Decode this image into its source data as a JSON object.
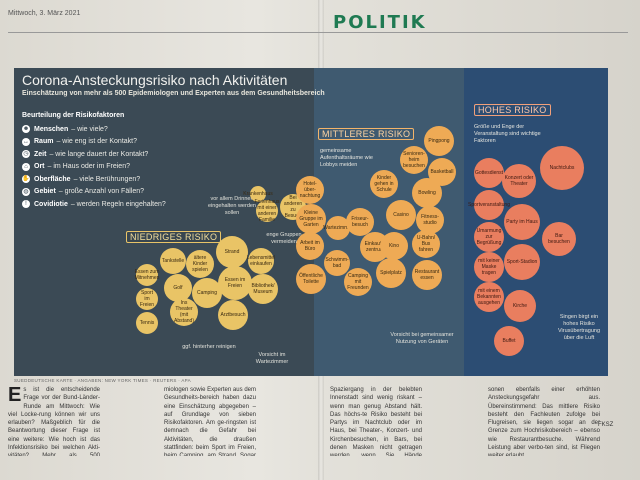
{
  "page": {
    "dateline": "Mittwoch, 3. März 2021",
    "section": "POLITIK"
  },
  "graphic": {
    "title": "Corona-Ansteckungsrisiko nach Aktivitäten",
    "subtitle": "Einschätzung von mehr als 500 Epidemiologen und Experten aus dem Gesundheitsbereich",
    "legend_title": "Beurteilung der Risikofaktoren",
    "legend": [
      {
        "key": "Menschen",
        "text": "– wie viele?",
        "icon": "people-icon",
        "glyph": "☻"
      },
      {
        "key": "Raum",
        "text": "– wie eng ist der Kontakt?",
        "icon": "space-icon",
        "glyph": "↔"
      },
      {
        "key": "Zeit",
        "text": "– wie lange dauert der Kontakt?",
        "icon": "clock-icon",
        "glyph": "◷"
      },
      {
        "key": "Ort",
        "text": "– im Haus oder im Freien?",
        "icon": "house-icon",
        "glyph": "⌂"
      },
      {
        "key": "Oberfläche",
        "text": "– viele Berührungen?",
        "icon": "hand-icon",
        "glyph": "✋"
      },
      {
        "key": "Gebiet",
        "text": "– große Anzahl von Fällen?",
        "icon": "globe-icon",
        "glyph": "◍"
      },
      {
        "key": "Covidiotie",
        "text": "– werden Regeln eingehalten?",
        "icon": "warning-icon",
        "glyph": "!"
      }
    ],
    "zones": {
      "low": "NIEDRIGES RISIKO",
      "mid": "MITTLERES RISIKO",
      "high": "HOHES RISIKO"
    },
    "zone_notes": {
      "high": "Größe und Enge der Veranstaltung sind wichtige Faktoren",
      "mid": "gemeinsame Aufenthaltsräume wie Lobbys meiden"
    },
    "notes": [
      "vor allem Drinnen eingehalten werden sollen",
      "enge Gruppen vermeiden",
      "ggf. hinterher reinigen",
      "Vorsicht im Wartezimmer",
      "Vorsicht bei gemeinsamer Nutzung von Geräten",
      "Singen birgt ein hohes Risiko Virusübertragung über die Luft"
    ],
    "bubbles_low": [
      "Essen zum Mitnehmen",
      "Tankstelle",
      "ältere Kinder spielen",
      "Sport im Freien",
      "Golf",
      "Camping",
      "Tennis",
      "Ins Theater (mit Abstand)",
      "Strand",
      "Essen im Freien",
      "Bibliothek/ Museum",
      "Arztbesuch",
      "Lebensmittel einkaufen",
      "Krankenhaus",
      "Ferienhaus mit einer anderen Familie",
      "Bei anderen zu Besuch"
    ],
    "bubbles_mid": [
      "Hotel-über-nachtung",
      "Kleine Gruppe im Garten",
      "Wartezimmer",
      "Friseur-besuch",
      "Arbeit im Büro",
      "Öffentliche Toilette",
      "Schwimm-bad",
      "Camping mit Freunden",
      "Einkaufs-zentrum",
      "Kino",
      "Spielplatz",
      "Senioren-heim besuchen",
      "Kinder gehen in Schule",
      "Bowling",
      "Casino",
      "U-Bahn/ Bus fahren",
      "Fitness-studio",
      "Restaurant essen",
      "Pingpong",
      "Basketball"
    ],
    "bubbles_high": [
      "Nachtclubs",
      "Gottesdienst",
      "Konzert oder Theater",
      "Sportveranstaltung",
      "Party im Haus",
      "Umarmung zur Begrüßung",
      "Buffet",
      "Sport-Stadion",
      "Bar besuchen",
      "mit keiner Maske tragen",
      "mit einem Bekannten ausgehen",
      "Kirche"
    ],
    "credit": "SUEDDEUTSCHE KARTE · ANGABEN: NEW YORK TIMES · REUTERS · APA"
  },
  "article": {
    "columns": [
      "s ist die entscheidende Frage vor der Bund-Länder-Runde am Mittwoch: Wie viel Locke-rung können wir uns erlauben? Maßgeblich für die Beantwortung dieser Frage ist eine weitere: Wie hoch ist das Infektionsrisiko bei welchen Akti-vitäten? Mehr als 500 Epidemiologen und Epide-",
      "miologen sowie Experten aus dem Gesundheits-bereich haben dazu eine Einschätzung abgegeben – auf Grundlage von sieben Risikofaktoren. Am ge-ringsten ist demnach die Gefahr bei Aktivitäten, die draußen stattfinden: beim Sport im Freien, beim Camping, am Strand. Sogar ein Arztbesuch oder ein",
      "Spaziergang in der belebten Innenstadt sind wenig riskant – wenn man genug Abstand hält. Das höchs-te Risiko besteht bei Partys im Nachtclub oder im Haus, bei Theater-, Konzert- und Kirchenbesuchen, in Bars, bei denen Masken nicht getragen werden, wenn Sie Hände schütteln, einen Kuss und Ihre Kontaktper-",
      "sonen ebenfalls einer erhöhten Ansteckungsgefahr aus. Übereinstimmend: Das mittlere Risiko besteht den Fachleuten zufolge bei Flugreisen, sie liegen sogar an der Grenze zum Hochrisikobereich – ebenso wie Restaurantbesuche. Während Leistung aber verbo-ten sind, ist Fliegen weiter erlaubt."
    ],
    "dropcap": "E",
    "author": "FKSZ"
  }
}
